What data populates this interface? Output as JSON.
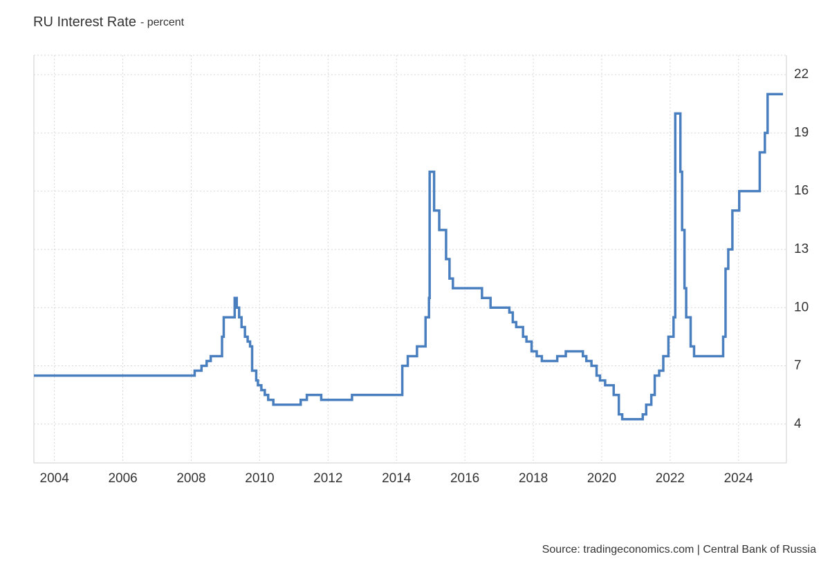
{
  "chart_data": {
    "type": "step-line",
    "title": "RU Interest Rate",
    "subtitle": "- percent",
    "source": "Source: tradingeconomics.com | Central Bank of Russia",
    "x": [
      2003.4,
      2008.1,
      2008.3,
      2008.45,
      2008.57,
      2008.9,
      2008.95,
      2009.27,
      2009.33,
      2009.4,
      2009.47,
      2009.57,
      2009.65,
      2009.72,
      2009.78,
      2009.9,
      2009.95,
      2010.05,
      2010.15,
      2010.25,
      2010.4,
      2011.2,
      2011.38,
      2011.8,
      2012.7,
      2014.17,
      2014.33,
      2014.6,
      2014.85,
      2014.95,
      2014.97,
      2015.1,
      2015.25,
      2015.45,
      2015.55,
      2015.65,
      2016.5,
      2016.75,
      2017.3,
      2017.4,
      2017.5,
      2017.7,
      2017.8,
      2017.95,
      2018.1,
      2018.25,
      2018.7,
      2018.95,
      2019.45,
      2019.55,
      2019.7,
      2019.85,
      2019.95,
      2020.1,
      2020.35,
      2020.5,
      2020.6,
      2021.2,
      2021.3,
      2021.45,
      2021.55,
      2021.68,
      2021.8,
      2021.95,
      2022.1,
      2022.15,
      2022.3,
      2022.35,
      2022.42,
      2022.47,
      2022.6,
      2022.7,
      2023.55,
      2023.62,
      2023.7,
      2023.82,
      2024.02,
      2024.62,
      2024.77,
      2024.85,
      2025.3
    ],
    "series": [
      {
        "name": "RU Interest Rate",
        "color": "#4a7fbf",
        "values": [
          6.5,
          6.75,
          7.0,
          7.25,
          7.5,
          8.5,
          9.5,
          10.5,
          10.0,
          9.5,
          9.0,
          8.5,
          8.25,
          8.0,
          6.75,
          6.25,
          6.0,
          5.75,
          5.5,
          5.25,
          5.0,
          5.25,
          5.5,
          5.25,
          5.5,
          7.0,
          7.5,
          8.0,
          9.5,
          10.5,
          17.0,
          15.0,
          14.0,
          12.5,
          11.5,
          11.0,
          10.5,
          10.0,
          9.75,
          9.25,
          9.0,
          8.5,
          8.25,
          7.75,
          7.5,
          7.25,
          7.5,
          7.75,
          7.5,
          7.25,
          7.0,
          6.5,
          6.25,
          6.0,
          5.5,
          4.5,
          4.25,
          4.5,
          5.0,
          5.5,
          6.5,
          6.75,
          7.5,
          8.5,
          9.5,
          20.0,
          17.0,
          14.0,
          11.0,
          9.5,
          8.0,
          7.5,
          8.5,
          12.0,
          13.0,
          15.0,
          16.0,
          18.0,
          19.0,
          21.0,
          21.0
        ]
      }
    ],
    "xlim": [
      2003.4,
      2025.4
    ],
    "xticks": [
      2004,
      2006,
      2008,
      2010,
      2012,
      2014,
      2016,
      2018,
      2020,
      2022,
      2024
    ],
    "ylim": [
      2,
      23
    ],
    "yticks": [
      4,
      7,
      10,
      13,
      16,
      19,
      22
    ],
    "grid": true
  }
}
